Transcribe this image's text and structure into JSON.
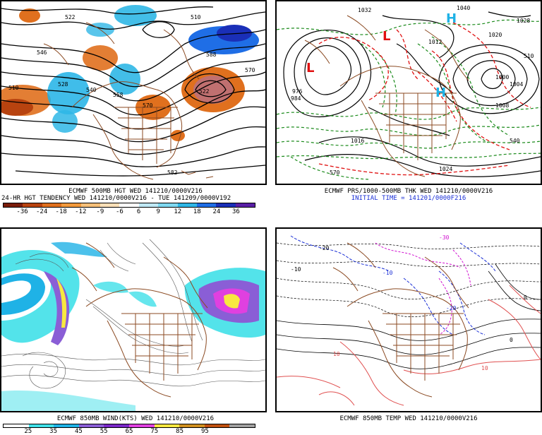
{
  "panels": {
    "top_left": {
      "caption_1": "ECMWF 500MB HGT WED 141210/0000V216",
      "caption_2": "24-HR HGT TENDENCY WED 141210/0000V216 - TUE 141209/0000V192",
      "colorbar_ticks": [
        "-36",
        "-24",
        "-18",
        "-12",
        "-9",
        "-6",
        "6",
        "9",
        "12",
        "18",
        "24",
        "36"
      ],
      "colorbar_colors": [
        "#7a1d0a",
        "#b8430f",
        "#e0701e",
        "#f29a3c",
        "#f7c079",
        "#fbe0b8",
        "#ffffff",
        "#bfe8f5",
        "#7fd8f0",
        "#2fb7e6",
        "#1f6ee6",
        "#1a2fb8",
        "#5a1fa6"
      ],
      "map_labels": [
        "522",
        "510",
        "528",
        "540",
        "546",
        "558",
        "570",
        "582",
        "510",
        "570",
        "588",
        "522"
      ]
    },
    "top_right": {
      "caption_1": "ECMWF PRS/1000-500MB THK WED 141210/0000V216",
      "caption_2": "INITIAL TIME = 141201/0000F216",
      "map_labels": [
        "1032",
        "1040",
        "1020",
        "1012",
        "1008",
        "1016",
        "1024",
        "1004",
        "1000",
        "984",
        "976",
        "H",
        "L",
        "H",
        "L",
        "570",
        "540",
        "510",
        "1028"
      ]
    },
    "bottom_left": {
      "caption_1": "ECMWF 850MB WIND(KTS) WED 141210/0000V216",
      "colorbar_ticks": [
        "25",
        "35",
        "45",
        "55",
        "65",
        "75",
        "85",
        "95"
      ],
      "colorbar_colors": [
        "#ffffff",
        "#40e0e8",
        "#1fb2e6",
        "#8a5ed6",
        "#7a28c8",
        "#e040e0",
        "#f8e840",
        "#d09020",
        "#c05010",
        "#a0a0a0"
      ]
    },
    "bottom_right": {
      "caption_1": "ECMWF 850MB TEMP WED 141210/0000V216",
      "map_labels": [
        "-20",
        "-10",
        "0",
        "10",
        "-30",
        "-20",
        "10",
        "0",
        "-10"
      ]
    }
  },
  "colors": {
    "coast": "#8b4a22",
    "contour_black": "#000000",
    "thickness_green": "#1a8a1a",
    "thickness_red": "#e01010",
    "temp_blue": "#1a2fd6",
    "temp_magenta": "#d010d0",
    "temp_red": "#e05050"
  }
}
